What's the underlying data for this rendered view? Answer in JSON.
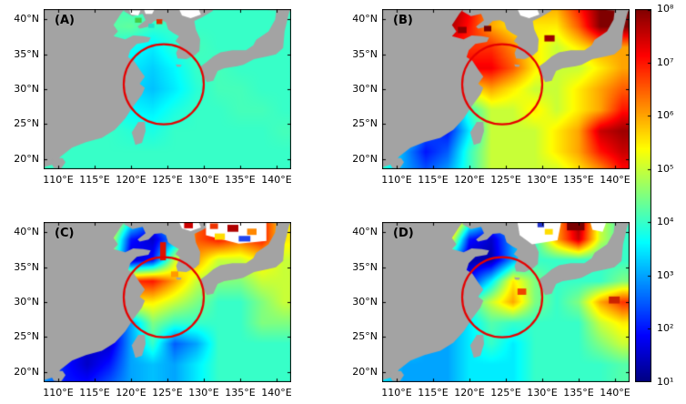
{
  "figure": {
    "panel_labels": [
      "(A)",
      "(B)",
      "(C)",
      "(D)"
    ],
    "x_tick_labels": [
      "110°E",
      "115°E",
      "120°E",
      "125°E",
      "130°E",
      "135°E",
      "140°E"
    ],
    "x_tick_lons": [
      110,
      115,
      120,
      125,
      130,
      135,
      140
    ],
    "y_tick_labels": [
      "40°N",
      "35°N",
      "30°N",
      "25°N",
      "20°N"
    ],
    "y_tick_lats": [
      40,
      35,
      30,
      25,
      20
    ],
    "colorbar": {
      "tick_labels": [
        "10⁸",
        "10⁷",
        "10⁶",
        "10⁵",
        "10⁴",
        "10³",
        "10²",
        "10¹"
      ]
    }
  },
  "chart_data": {
    "type": "heatmap",
    "description": "Four-panel (A-D) geographic heatmaps over the East China Sea / Yellow Sea / Sea of Japan region, log10 color scale from 10^1 to 10^8, jet colormap, gray land mask, red annotation circle on each panel.",
    "lon_range": [
      108,
      142
    ],
    "lat_range": [
      18.5,
      41.5
    ],
    "grid_lons": [
      108,
      111,
      114,
      117,
      120,
      123,
      126,
      129,
      132,
      135,
      138,
      141
    ],
    "grid_lats": [
      42,
      39,
      36,
      33,
      30,
      27,
      24,
      21,
      18
    ],
    "colorbar": {
      "scale": "log10",
      "min_exponent": 1,
      "max_exponent": 8,
      "colormap": "jet"
    },
    "land_color": "#a3a3a3",
    "annotation_circle": {
      "lon": 124.5,
      "lat": 30.7,
      "radius_deg": 5.5,
      "color": "#e60000"
    },
    "panels": [
      {
        "id": "A",
        "label": "(A)",
        "grid_log10": [
          [
            4,
            4,
            4,
            4.2,
            4,
            4,
            4.2,
            4,
            4,
            4,
            4,
            4
          ],
          [
            4,
            4,
            4,
            4.2,
            4.3,
            4,
            4,
            4,
            4,
            4,
            4,
            4
          ],
          [
            4,
            4,
            4,
            4,
            3.7,
            3.5,
            3.9,
            4.1,
            4,
            4,
            4,
            4
          ],
          [
            4,
            4,
            4,
            3.9,
            3.5,
            3.3,
            3.6,
            4,
            4.1,
            4,
            4,
            4
          ],
          [
            4,
            4,
            4,
            3.8,
            3.4,
            3.2,
            3.5,
            3.9,
            4.1,
            4.1,
            4,
            4
          ],
          [
            4,
            4,
            4,
            3.9,
            3.6,
            3.5,
            3.8,
            4,
            4,
            4.1,
            4.1,
            4
          ],
          [
            4,
            4,
            4,
            4,
            3.9,
            3.8,
            4,
            4,
            4,
            4,
            4,
            4.1
          ],
          [
            4,
            4,
            4,
            4,
            4,
            4,
            4,
            4,
            4,
            4,
            4,
            4
          ],
          [
            4,
            4,
            4,
            4,
            4,
            4,
            4,
            4,
            4,
            4,
            4,
            4
          ]
        ]
      },
      {
        "id": "B",
        "label": "(B)",
        "grid_log10": [
          [
            5.5,
            6.5,
            7.8,
            8,
            7.2,
            6,
            5.5,
            6,
            6,
            7,
            8,
            8
          ],
          [
            5.5,
            6.5,
            7.8,
            7.8,
            7,
            6,
            5.5,
            5.5,
            5.5,
            6.5,
            8,
            8
          ],
          [
            5,
            5.5,
            6,
            7,
            6.8,
            6.8,
            6.2,
            5.5,
            5,
            5.5,
            6,
            6
          ],
          [
            5,
            5,
            5,
            6.5,
            7.2,
            7.2,
            6.5,
            5.5,
            5,
            5,
            5.5,
            6
          ],
          [
            5,
            4.5,
            4,
            3,
            5.5,
            6,
            5.5,
            5,
            5,
            5.5,
            6,
            6.5
          ],
          [
            5,
            4.5,
            3,
            2.5,
            4,
            5,
            5,
            5.5,
            5,
            5.5,
            6,
            7
          ],
          [
            4.5,
            4,
            2.5,
            2,
            3.5,
            5,
            5,
            5,
            5.5,
            6,
            7.5,
            7.8
          ],
          [
            4,
            3,
            2,
            2.5,
            4,
            5,
            5,
            5,
            5.5,
            6,
            7,
            7.5
          ],
          [
            4,
            3,
            2.5,
            3,
            4,
            5,
            5,
            5,
            5,
            5.5,
            6,
            7
          ]
        ]
      },
      {
        "id": "C",
        "label": "(C)",
        "grid_log10": [
          [
            4,
            4.5,
            5.5,
            6,
            4,
            2.5,
            4,
            6.5,
            7,
            6.5,
            7,
            5.5
          ],
          [
            4,
            4.5,
            5.5,
            5.5,
            2,
            1.5,
            3,
            6.5,
            7,
            6.5,
            7,
            5.5
          ],
          [
            4,
            4,
            4,
            5,
            1.5,
            2,
            5,
            6,
            5,
            5,
            5.5,
            5
          ],
          [
            4,
            4,
            4,
            5.5,
            6.8,
            7,
            6,
            5,
            4.5,
            4.5,
            5,
            5
          ],
          [
            4,
            3.5,
            3,
            2,
            5.5,
            5.5,
            5,
            4.5,
            4,
            4,
            4.5,
            5
          ],
          [
            3.5,
            3,
            2,
            1.5,
            3,
            4.5,
            4,
            4,
            4,
            4,
            4.5,
            4.5
          ],
          [
            3,
            2,
            1.5,
            1.5,
            3,
            4,
            2.5,
            3,
            4,
            4,
            4,
            4
          ],
          [
            3,
            2,
            1.5,
            2,
            3,
            3.2,
            3,
            3.5,
            4,
            4,
            4,
            4
          ],
          [
            3,
            2,
            2,
            2.5,
            3,
            3.2,
            3,
            3.5,
            4,
            4,
            4,
            4
          ]
        ]
      },
      {
        "id": "D",
        "label": "(D)",
        "grid_log10": [
          [
            4,
            5.5,
            7.5,
            7.5,
            4.5,
            3,
            3,
            4,
            6,
            7.8,
            5,
            4
          ],
          [
            4,
            5,
            7,
            6,
            2,
            1.5,
            3,
            4,
            6,
            7.5,
            5,
            4
          ],
          [
            4,
            4,
            4,
            3.5,
            1.3,
            1.3,
            3,
            4,
            4,
            4,
            4,
            4
          ],
          [
            4,
            4,
            4,
            3.8,
            2,
            3.5,
            5.5,
            4.5,
            4,
            4,
            4,
            4.5
          ],
          [
            4,
            4,
            4,
            3.5,
            4,
            5,
            6,
            4.5,
            4,
            4.5,
            6,
            6.8
          ],
          [
            4,
            4,
            3.5,
            3,
            3.5,
            4.2,
            4,
            4,
            4,
            4,
            5,
            5.5
          ],
          [
            4,
            3.5,
            3,
            3,
            3.5,
            4,
            3.5,
            4,
            4,
            4,
            4.5,
            5
          ],
          [
            3.5,
            3,
            3,
            3,
            3.5,
            3.5,
            3.5,
            4,
            4,
            4,
            4,
            4.2
          ],
          [
            3.5,
            3,
            3,
            3,
            3.5,
            3.5,
            3.5,
            4,
            4,
            4,
            4,
            4.2
          ]
        ]
      }
    ],
    "land_polygons": {
      "china": [
        [
          108,
          42
        ],
        [
          119.5,
          42
        ],
        [
          118.6,
          40.8
        ],
        [
          117.6,
          39.2
        ],
        [
          118.2,
          38.3
        ],
        [
          117.6,
          37.6
        ],
        [
          119.2,
          37.15
        ],
        [
          120.3,
          37.7
        ],
        [
          121.7,
          37.6
        ],
        [
          122.7,
          37.4
        ],
        [
          122.4,
          36.8
        ],
        [
          120.8,
          36.5
        ],
        [
          119.9,
          35.6
        ],
        [
          119.6,
          34.6
        ],
        [
          120.4,
          34.1
        ],
        [
          121.2,
          32.8
        ],
        [
          121.9,
          31.8
        ],
        [
          121.2,
          30.8
        ],
        [
          121.9,
          30.2
        ],
        [
          121.5,
          29.2
        ],
        [
          120.2,
          27.4
        ],
        [
          119.2,
          25.8
        ],
        [
          117.8,
          24.2
        ],
        [
          116.0,
          23.0
        ],
        [
          113.8,
          22.4
        ],
        [
          111.9,
          21.6
        ],
        [
          110.3,
          20.3
        ],
        [
          109.6,
          19.3
        ],
        [
          108,
          18.8
        ],
        [
          108,
          18
        ]
      ],
      "liaodong_korea": [
        [
          119.5,
          42
        ],
        [
          131.5,
          42
        ],
        [
          131.2,
          41.2
        ],
        [
          129.7,
          40.3
        ],
        [
          128.7,
          39.8
        ],
        [
          128.9,
          38.6
        ],
        [
          129.5,
          37.2
        ],
        [
          129.4,
          35.5
        ],
        [
          128.8,
          34.9
        ],
        [
          127.6,
          34.3
        ],
        [
          126.4,
          34.4
        ],
        [
          126.2,
          35.2
        ],
        [
          126.7,
          36.4
        ],
        [
          126.1,
          36.9
        ],
        [
          126.6,
          37.6
        ],
        [
          125.9,
          38.0
        ],
        [
          125.1,
          38.6
        ],
        [
          124.8,
          39.6
        ],
        [
          124.2,
          39.9
        ],
        [
          123.2,
          39.8
        ],
        [
          122.4,
          39.0
        ],
        [
          121.2,
          38.7
        ],
        [
          120.9,
          39.0
        ],
        [
          122.0,
          39.9
        ],
        [
          121.6,
          40.8
        ],
        [
          120.2,
          40.5
        ],
        [
          119.0,
          41.2
        ]
      ],
      "japan": [
        [
          129.6,
          33.3
        ],
        [
          129.8,
          32.2
        ],
        [
          130.4,
          31.0
        ],
        [
          131.3,
          31.2
        ],
        [
          131.9,
          32.6
        ],
        [
          132.8,
          33.0
        ],
        [
          134.6,
          33.3
        ],
        [
          135.4,
          33.5
        ],
        [
          136.9,
          34.3
        ],
        [
          138.7,
          34.7
        ],
        [
          139.9,
          35.0
        ],
        [
          140.9,
          35.9
        ],
        [
          141.1,
          38.3
        ],
        [
          141.6,
          40.5
        ],
        [
          141.9,
          41.6
        ],
        [
          140.0,
          41.6
        ],
        [
          139.8,
          40.0
        ],
        [
          138.9,
          38.3
        ],
        [
          137.2,
          37.1
        ],
        [
          136.8,
          36.3
        ],
        [
          135.8,
          35.6
        ],
        [
          133.9,
          35.6
        ],
        [
          132.3,
          35.3
        ],
        [
          131.3,
          34.7
        ],
        [
          130.5,
          34.0
        ]
      ],
      "russia_strip": [
        [
          133.5,
          42
        ],
        [
          142,
          42
        ],
        [
          142,
          41.2
        ],
        [
          138,
          41.4
        ],
        [
          134.5,
          41.6
        ]
      ],
      "taiwan": [
        [
          121.9,
          25.3
        ],
        [
          121.0,
          25.3
        ],
        [
          120.1,
          23.8
        ],
        [
          120.6,
          22.0
        ],
        [
          121.5,
          22.3
        ],
        [
          122.0,
          24.0
        ]
      ],
      "hainan": [
        [
          109.3,
          20.1
        ],
        [
          110.6,
          20.1
        ],
        [
          111.0,
          19.5
        ],
        [
          110.4,
          18.6
        ],
        [
          109.4,
          18.7
        ],
        [
          109.0,
          19.4
        ]
      ],
      "jeju": [
        [
          126.15,
          33.55
        ],
        [
          126.95,
          33.5
        ],
        [
          126.8,
          33.2
        ],
        [
          126.3,
          33.25
        ]
      ]
    },
    "nodata_polygons": {
      "shared": [
        [
          [
            126.6,
            41.5
          ],
          [
            129.3,
            41.5
          ],
          [
            129.6,
            40.7
          ],
          [
            128.2,
            40.2
          ],
          [
            127.0,
            40.6
          ]
        ]
      ],
      "A": [
        [
          [
            119.8,
            41.3
          ],
          [
            121.3,
            41.3
          ],
          [
            121.0,
            40.6
          ],
          [
            120.0,
            40.7
          ]
        ],
        [
          [
            121.8,
            41.4
          ],
          [
            123.2,
            41.4
          ],
          [
            122.9,
            40.8
          ],
          [
            122.0,
            40.8
          ]
        ]
      ],
      "B": [],
      "C": [
        [
          [
            130.3,
            41.5
          ],
          [
            138.6,
            41.5
          ],
          [
            138.6,
            38.8
          ],
          [
            134.8,
            38.4
          ],
          [
            130.3,
            39.6
          ]
        ]
      ],
      "D": [
        [
          [
            126.6,
            41.5
          ],
          [
            132.6,
            41.5
          ],
          [
            132.1,
            38.9
          ],
          [
            128.6,
            38.3
          ],
          [
            126.9,
            39.6
          ]
        ],
        [
          [
            136.6,
            41.5
          ],
          [
            138.8,
            41.5
          ],
          [
            138.3,
            40.1
          ],
          [
            136.9,
            40.4
          ]
        ]
      ]
    },
    "patches": {
      "A": [
        [
          123.9,
          39.7,
          0.8,
          0.7,
          "#dd3300"
        ],
        [
          122.8,
          39.1,
          0.8,
          0.6,
          "#22ddcc"
        ],
        [
          121.0,
          39.9,
          0.9,
          0.7,
          "#44cc44"
        ]
      ],
      "B": [
        [
          122.5,
          38.7,
          1.0,
          0.8,
          "#7a0000"
        ],
        [
          119.0,
          38.5,
          1.2,
          0.9,
          "#8a0000"
        ],
        [
          131.0,
          37.3,
          1.4,
          0.9,
          "#9a0000"
        ]
      ],
      "C": [
        [
          134.0,
          40.6,
          1.5,
          1.0,
          "#b00000"
        ],
        [
          136.6,
          40.1,
          1.3,
          0.9,
          "#ff8800"
        ],
        [
          132.2,
          39.4,
          1.4,
          0.9,
          "#ffdd00"
        ],
        [
          135.6,
          39.1,
          1.6,
          0.8,
          "#2244ee"
        ],
        [
          131.4,
          40.9,
          1.1,
          0.8,
          "#ee3300"
        ],
        [
          127.9,
          41.0,
          1.2,
          0.8,
          "#cc0000"
        ],
        [
          124.4,
          37.3,
          0.8,
          2.6,
          "#dd1100"
        ],
        [
          126.0,
          34.0,
          1.0,
          0.8,
          "#ff9900"
        ]
      ],
      "D": [
        [
          134.6,
          40.9,
          2.4,
          1.2,
          "#7a0000"
        ],
        [
          130.9,
          40.1,
          1.1,
          0.8,
          "#ffdd00"
        ],
        [
          129.8,
          41.1,
          0.9,
          0.7,
          "#2233cc"
        ],
        [
          127.2,
          31.5,
          1.2,
          0.9,
          "#ee4400"
        ],
        [
          139.9,
          30.3,
          1.5,
          1.0,
          "#cc2200"
        ]
      ]
    }
  }
}
